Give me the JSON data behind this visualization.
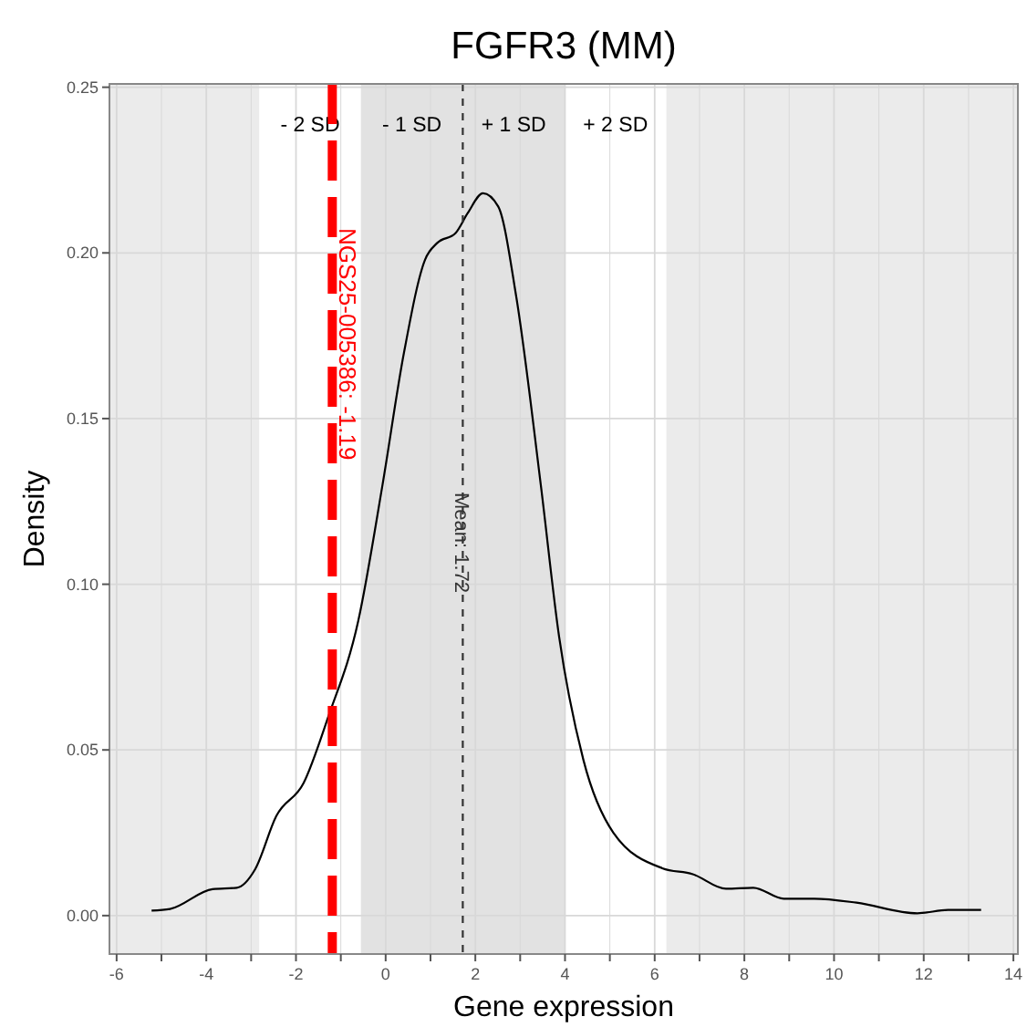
{
  "chart_data": {
    "type": "line",
    "title": "FGFR3 (MM)",
    "xlabel": "Gene expression",
    "ylabel": "Density",
    "x": [
      -5.22,
      -4.81,
      -3.86,
      -3.32,
      -2.91,
      -2.44,
      -1.83,
      -1.28,
      -0.61,
      -0.07,
      0.41,
      0.88,
      1.15,
      1.56,
      1.83,
      2.17,
      2.51,
      2.91,
      3.46,
      3.87,
      4.41,
      5.08,
      6.17,
      6.85,
      7.59,
      8.2,
      8.88,
      9.56,
      10.5,
      11.86,
      12.54,
      13.28
    ],
    "series": [
      {
        "color": "#000000",
        "values": [
          0.0015,
          0.002,
          0.008,
          0.0084,
          0.014,
          0.03,
          0.04,
          0.06,
          0.089,
          0.13,
          0.17,
          0.198,
          0.203,
          0.206,
          0.212,
          0.218,
          0.214,
          0.187,
          0.13,
          0.084,
          0.047,
          0.025,
          0.0143,
          0.0125,
          0.0081,
          0.0084,
          0.0051,
          0.0051,
          0.0039,
          0.0007,
          0.0017,
          0.0017
        ]
      }
    ],
    "xlim": [
      -6.16,
      14.1
    ],
    "ylim": [
      -0.0116,
      0.251
    ],
    "xticks": [
      -6,
      {
        "value": -5,
        "label": null
      },
      -4,
      {
        "value": -3,
        "label": null
      },
      -2,
      {
        "value": -1,
        "label": null
      },
      0,
      {
        "value": 1,
        "label": null
      },
      2,
      {
        "value": 3,
        "label": null
      },
      4,
      {
        "value": 5,
        "label": null
      },
      6,
      {
        "value": 7,
        "label": null
      },
      8,
      {
        "value": 9,
        "label": null
      },
      10,
      {
        "value": 11,
        "label": null
      },
      12,
      {
        "value": 13,
        "label": null
      },
      14
    ],
    "yticks": [
      {
        "value": 0,
        "label": "0.00"
      },
      {
        "value": 0.05,
        "label": "0.05"
      },
      {
        "value": 0.1,
        "label": "0.10"
      },
      {
        "value": 0.15,
        "label": "0.15"
      },
      {
        "value": 0.2,
        "label": "0.20"
      },
      {
        "value": 0.25,
        "label": "0.25"
      }
    ],
    "grid": true,
    "marker": "none",
    "line_style": "solid",
    "bands": [
      {
        "axis": "x",
        "from": -2.82,
        "to": -0.55,
        "label": "- 2 SD",
        "color": "#ffffff"
      },
      {
        "axis": "x",
        "from": -0.55,
        "to": 1.72,
        "label": "- 1 SD",
        "color": "#e2e2e2"
      },
      {
        "axis": "x",
        "from": 1.72,
        "to": 3.99,
        "label": "+ 1 SD",
        "color": "#e2e2e2"
      },
      {
        "axis": "x",
        "from": 3.99,
        "to": 6.26,
        "label": "+ 2 SD",
        "color": "#ffffff"
      }
    ],
    "ref_lines": [
      {
        "axis": "x",
        "value": 1.72,
        "label": "Mean: 1.72",
        "color": "#333333",
        "line_style": "dashed"
      },
      {
        "axis": "x",
        "value": -1.19,
        "label": "NGS25-005386: -1.19",
        "color": "#ff0000",
        "line_style": "longdash"
      }
    ]
  }
}
